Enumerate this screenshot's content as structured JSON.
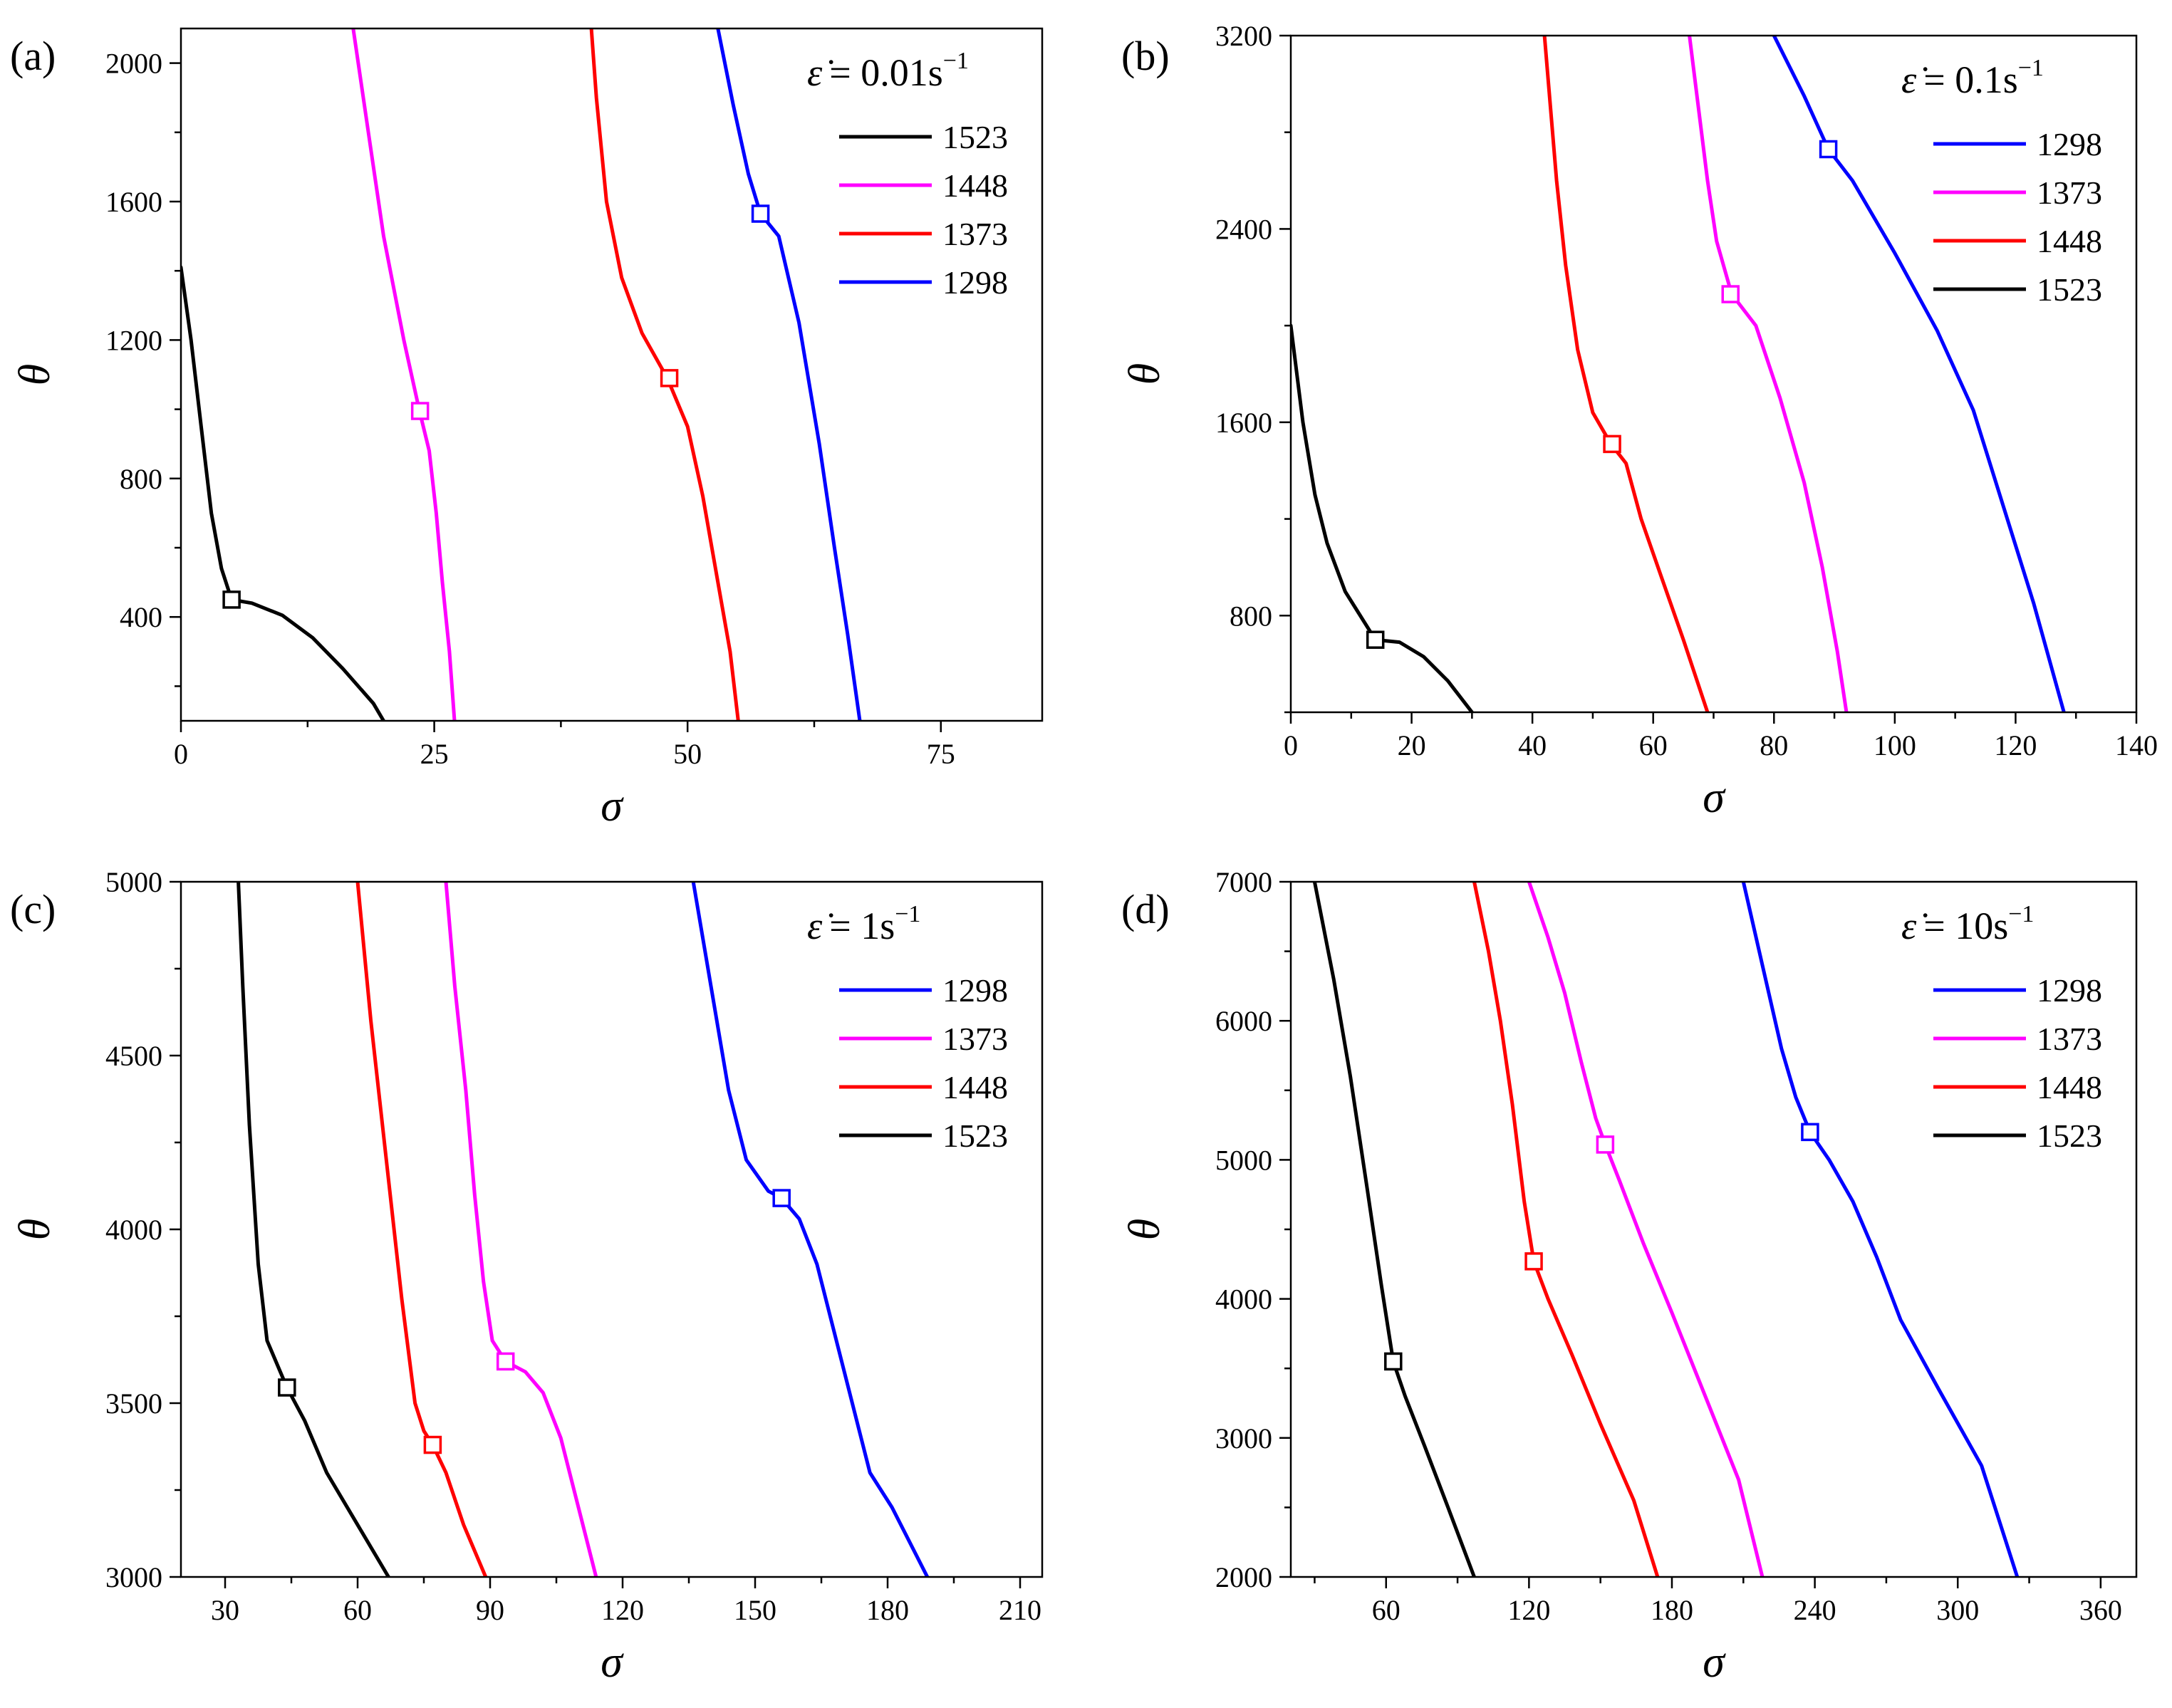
{
  "chart_data": [
    {
      "type": "line",
      "panel_label": "(a)",
      "xlabel": "σ",
      "ylabel": "θ",
      "xlim": [
        0,
        85
      ],
      "ylim": [
        100,
        2100
      ],
      "xticks": [
        0,
        25,
        50,
        75
      ],
      "yticks": [
        400,
        800,
        1200,
        1600,
        2000
      ],
      "legend": {
        "location": "top-right",
        "title_lhs": "ε̇",
        "title_rhs": "= 0.01s",
        "title_sup": "−1",
        "entries": [
          "1523",
          "1448",
          "1373",
          "1298"
        ]
      },
      "series": [
        {
          "name": "1523",
          "color": "#000000",
          "points": [
            [
              0,
              1410
            ],
            [
              1,
              1200
            ],
            [
              2,
              950
            ],
            [
              3,
              700
            ],
            [
              4,
              540
            ],
            [
              5,
              450
            ],
            [
              7,
              440
            ],
            [
              10,
              405
            ],
            [
              13,
              340
            ],
            [
              16,
              250
            ],
            [
              19,
              150
            ],
            [
              20,
              100
            ]
          ],
          "marker": [
            5,
            450
          ]
        },
        {
          "name": "1448",
          "color": "#ff00ff",
          "points": [
            [
              17,
              2100
            ],
            [
              18.5,
              1800
            ],
            [
              20,
              1500
            ],
            [
              22,
              1200
            ],
            [
              23.5,
              1000
            ],
            [
              24.5,
              880
            ],
            [
              25.2,
              700
            ],
            [
              25.8,
              500
            ],
            [
              26.5,
              300
            ],
            [
              27,
              100
            ]
          ],
          "marker": [
            23.6,
            995
          ]
        },
        {
          "name": "1373",
          "color": "#ff0000",
          "points": [
            [
              40.5,
              2100
            ],
            [
              41,
              1900
            ],
            [
              42,
              1600
            ],
            [
              43.5,
              1380
            ],
            [
              45.5,
              1220
            ],
            [
              48,
              1090
            ],
            [
              50,
              950
            ],
            [
              51.5,
              750
            ],
            [
              53,
              500
            ],
            [
              54.2,
              300
            ],
            [
              55,
              100
            ]
          ],
          "marker": [
            48.2,
            1090
          ]
        },
        {
          "name": "1298",
          "color": "#0000ff",
          "points": [
            [
              53,
              2100
            ],
            [
              54.5,
              1880
            ],
            [
              56,
              1680
            ],
            [
              57.2,
              1565
            ],
            [
              59,
              1500
            ],
            [
              61,
              1250
            ],
            [
              63,
              900
            ],
            [
              64.5,
              600
            ],
            [
              65.8,
              350
            ],
            [
              67,
              100
            ]
          ],
          "marker": [
            57.2,
            1565
          ]
        }
      ]
    },
    {
      "type": "line",
      "panel_label": "(b)",
      "xlabel": "σ",
      "ylabel": "θ",
      "xlim": [
        0,
        140
      ],
      "ylim": [
        400,
        3200
      ],
      "xticks": [
        0,
        20,
        40,
        60,
        80,
        100,
        120,
        140
      ],
      "yticks": [
        800,
        1600,
        2400,
        3200
      ],
      "legend": {
        "location": "top-right",
        "title_lhs": "ε̇",
        "title_rhs": "= 0.1s",
        "title_sup": "−1",
        "entries": [
          "1298",
          "1373",
          "1448",
          "1523"
        ]
      },
      "series": [
        {
          "name": "1298",
          "color": "#0000ff",
          "points": [
            [
              80,
              3200
            ],
            [
              85,
              2950
            ],
            [
              89,
              2730
            ],
            [
              93,
              2600
            ],
            [
              100,
              2300
            ],
            [
              107,
              1980
            ],
            [
              113,
              1650
            ],
            [
              118,
              1250
            ],
            [
              123,
              850
            ],
            [
              128,
              400
            ]
          ],
          "marker": [
            89,
            2730
          ]
        },
        {
          "name": "1373",
          "color": "#ff00ff",
          "points": [
            [
              66,
              3200
            ],
            [
              67.5,
              2900
            ],
            [
              69,
              2600
            ],
            [
              70.5,
              2350
            ],
            [
              73,
              2130
            ],
            [
              77,
              2000
            ],
            [
              81,
              1700
            ],
            [
              85,
              1350
            ],
            [
              88,
              1000
            ],
            [
              90.5,
              650
            ],
            [
              92,
              400
            ]
          ],
          "marker": [
            72.8,
            2130
          ]
        },
        {
          "name": "1448",
          "color": "#ff0000",
          "points": [
            [
              42,
              3200
            ],
            [
              43,
              2900
            ],
            [
              44,
              2600
            ],
            [
              45.5,
              2250
            ],
            [
              47.5,
              1900
            ],
            [
              50,
              1640
            ],
            [
              53,
              1510
            ],
            [
              55.5,
              1430
            ],
            [
              58,
              1200
            ],
            [
              61.5,
              950
            ],
            [
              65,
              700
            ],
            [
              69,
              400
            ]
          ],
          "marker": [
            53.2,
            1510
          ]
        },
        {
          "name": "1523",
          "color": "#000000",
          "points": [
            [
              0,
              2000
            ],
            [
              2,
              1600
            ],
            [
              4,
              1300
            ],
            [
              6,
              1100
            ],
            [
              9,
              900
            ],
            [
              12,
              780
            ],
            [
              14,
              700
            ],
            [
              18,
              690
            ],
            [
              22,
              630
            ],
            [
              26,
              530
            ],
            [
              30,
              400
            ]
          ],
          "marker": [
            14,
            700
          ]
        }
      ]
    },
    {
      "type": "line",
      "panel_label": "(c)",
      "xlabel": "σ",
      "ylabel": "θ",
      "xlim": [
        20,
        215
      ],
      "ylim": [
        3000,
        5000
      ],
      "xticks": [
        30,
        60,
        90,
        120,
        150,
        180,
        210
      ],
      "yticks": [
        3000,
        3500,
        4000,
        4500,
        5000
      ],
      "legend": {
        "location": "top-right",
        "title_lhs": "ε̇",
        "title_rhs": "= 1s",
        "title_sup": "−1",
        "entries": [
          "1298",
          "1373",
          "1448",
          "1523"
        ]
      },
      "series": [
        {
          "name": "1298",
          "color": "#0000ff",
          "points": [
            [
              136,
              5000
            ],
            [
              140,
              4700
            ],
            [
              144,
              4400
            ],
            [
              148,
              4200
            ],
            [
              153,
              4110
            ],
            [
              156,
              4090
            ],
            [
              160,
              4030
            ],
            [
              164,
              3900
            ],
            [
              168,
              3700
            ],
            [
              172,
              3500
            ],
            [
              176,
              3300
            ],
            [
              181,
              3200
            ],
            [
              189,
              3000
            ]
          ],
          "marker": [
            156,
            4090
          ]
        },
        {
          "name": "1373",
          "color": "#ff00ff",
          "points": [
            [
              80,
              5000
            ],
            [
              82,
              4700
            ],
            [
              84.5,
              4400
            ],
            [
              86.5,
              4100
            ],
            [
              88.5,
              3850
            ],
            [
              90.5,
              3680
            ],
            [
              93.5,
              3620
            ],
            [
              98,
              3590
            ],
            [
              102,
              3530
            ],
            [
              106,
              3400
            ],
            [
              110,
              3200
            ],
            [
              114,
              3000
            ]
          ],
          "marker": [
            93.5,
            3620
          ]
        },
        {
          "name": "1448",
          "color": "#ff0000",
          "points": [
            [
              60,
              5000
            ],
            [
              63,
              4600
            ],
            [
              66.5,
              4200
            ],
            [
              70,
              3800
            ],
            [
              73,
              3500
            ],
            [
              75,
              3420
            ],
            [
              77,
              3380
            ],
            [
              80,
              3300
            ],
            [
              84,
              3150
            ],
            [
              89,
              3000
            ]
          ],
          "marker": [
            77,
            3380
          ]
        },
        {
          "name": "1523",
          "color": "#000000",
          "points": [
            [
              33,
              5000
            ],
            [
              34,
              4700
            ],
            [
              35.5,
              4300
            ],
            [
              37.5,
              3900
            ],
            [
              39.5,
              3680
            ],
            [
              44,
              3545
            ],
            [
              48,
              3450
            ],
            [
              53,
              3300
            ],
            [
              60,
              3150
            ],
            [
              67,
              3000
            ]
          ],
          "marker": [
            44,
            3545
          ]
        }
      ]
    },
    {
      "type": "line",
      "panel_label": "(d)",
      "xlabel": "σ",
      "ylabel": "θ",
      "xlim": [
        20,
        375
      ],
      "ylim": [
        2000,
        7000
      ],
      "xticks": [
        60,
        120,
        180,
        240,
        300,
        360
      ],
      "yticks": [
        2000,
        3000,
        4000,
        5000,
        6000,
        7000
      ],
      "legend": {
        "location": "top-right",
        "title_lhs": "ε̇",
        "title_rhs": "= 10s",
        "title_sup": "−1",
        "entries": [
          "1298",
          "1373",
          "1448",
          "1523"
        ]
      },
      "series": [
        {
          "name": "1298",
          "color": "#0000ff",
          "points": [
            [
              210,
              7000
            ],
            [
              218,
              6400
            ],
            [
              226,
              5800
            ],
            [
              232,
              5450
            ],
            [
              238,
              5200
            ],
            [
              246,
              5000
            ],
            [
              256,
              4700
            ],
            [
              266,
              4300
            ],
            [
              276,
              3850
            ],
            [
              292,
              3350
            ],
            [
              310,
              2800
            ],
            [
              325,
              2000
            ]
          ],
          "marker": [
            238,
            5200
          ]
        },
        {
          "name": "1373",
          "color": "#ff00ff",
          "points": [
            [
              120,
              7000
            ],
            [
              128,
              6600
            ],
            [
              135,
              6200
            ],
            [
              142,
              5700
            ],
            [
              148,
              5300
            ],
            [
              152,
              5110
            ],
            [
              158,
              4850
            ],
            [
              168,
              4400
            ],
            [
              180,
              3900
            ],
            [
              194,
              3300
            ],
            [
              208,
              2700
            ],
            [
              218,
              2000
            ]
          ],
          "marker": [
            152,
            5110
          ]
        },
        {
          "name": "1448",
          "color": "#ff0000",
          "points": [
            [
              97,
              7000
            ],
            [
              103,
              6500
            ],
            [
              108,
              6000
            ],
            [
              113,
              5400
            ],
            [
              118,
              4700
            ],
            [
              122,
              4270
            ],
            [
              128,
              4000
            ],
            [
              138,
              3600
            ],
            [
              150,
              3100
            ],
            [
              164,
              2550
            ],
            [
              174,
              2000
            ]
          ],
          "marker": [
            122,
            4270
          ]
        },
        {
          "name": "1523",
          "color": "#000000",
          "points": [
            [
              30,
              7000
            ],
            [
              38,
              6300
            ],
            [
              45,
              5600
            ],
            [
              52,
              4800
            ],
            [
              58,
              4100
            ],
            [
              63,
              3550
            ],
            [
              68,
              3300
            ],
            [
              76,
              2950
            ],
            [
              86,
              2500
            ],
            [
              97,
              2000
            ]
          ],
          "marker": [
            63,
            3550
          ]
        }
      ]
    }
  ]
}
